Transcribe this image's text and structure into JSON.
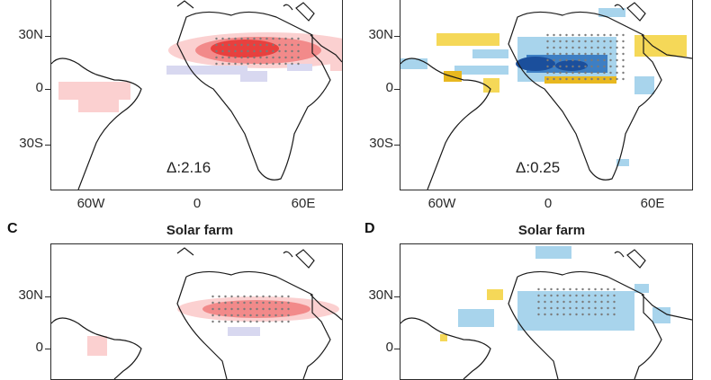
{
  "panels": [
    {
      "id": "A",
      "label": "",
      "title": "",
      "delta": "Δ:2.16"
    },
    {
      "id": "B",
      "label": "",
      "title": "",
      "delta": "Δ:0.25"
    },
    {
      "id": "C",
      "label": "C",
      "title": "Solar farm",
      "delta": ""
    },
    {
      "id": "D",
      "label": "D",
      "title": "Solar farm",
      "delta": ""
    }
  ],
  "axes": {
    "lat_labels": [
      "30N",
      "0",
      "30S"
    ],
    "lon_labels": [
      "60W",
      "0",
      "60E"
    ]
  },
  "colors": {
    "warm_strong": "#e8403e",
    "warm_medium": "#f28a8a",
    "warm_light": "#fbd0d0",
    "cool_light": "#d8d8f0",
    "blue_dark": "#1b4f9c",
    "blue_medium": "#3d7fc4",
    "blue_light": "#a8d4ec",
    "yellow": "#f5d858",
    "yellow_dark": "#e8b820",
    "coast": "#1a1a1a",
    "stipple": "#7a7a7a"
  }
}
